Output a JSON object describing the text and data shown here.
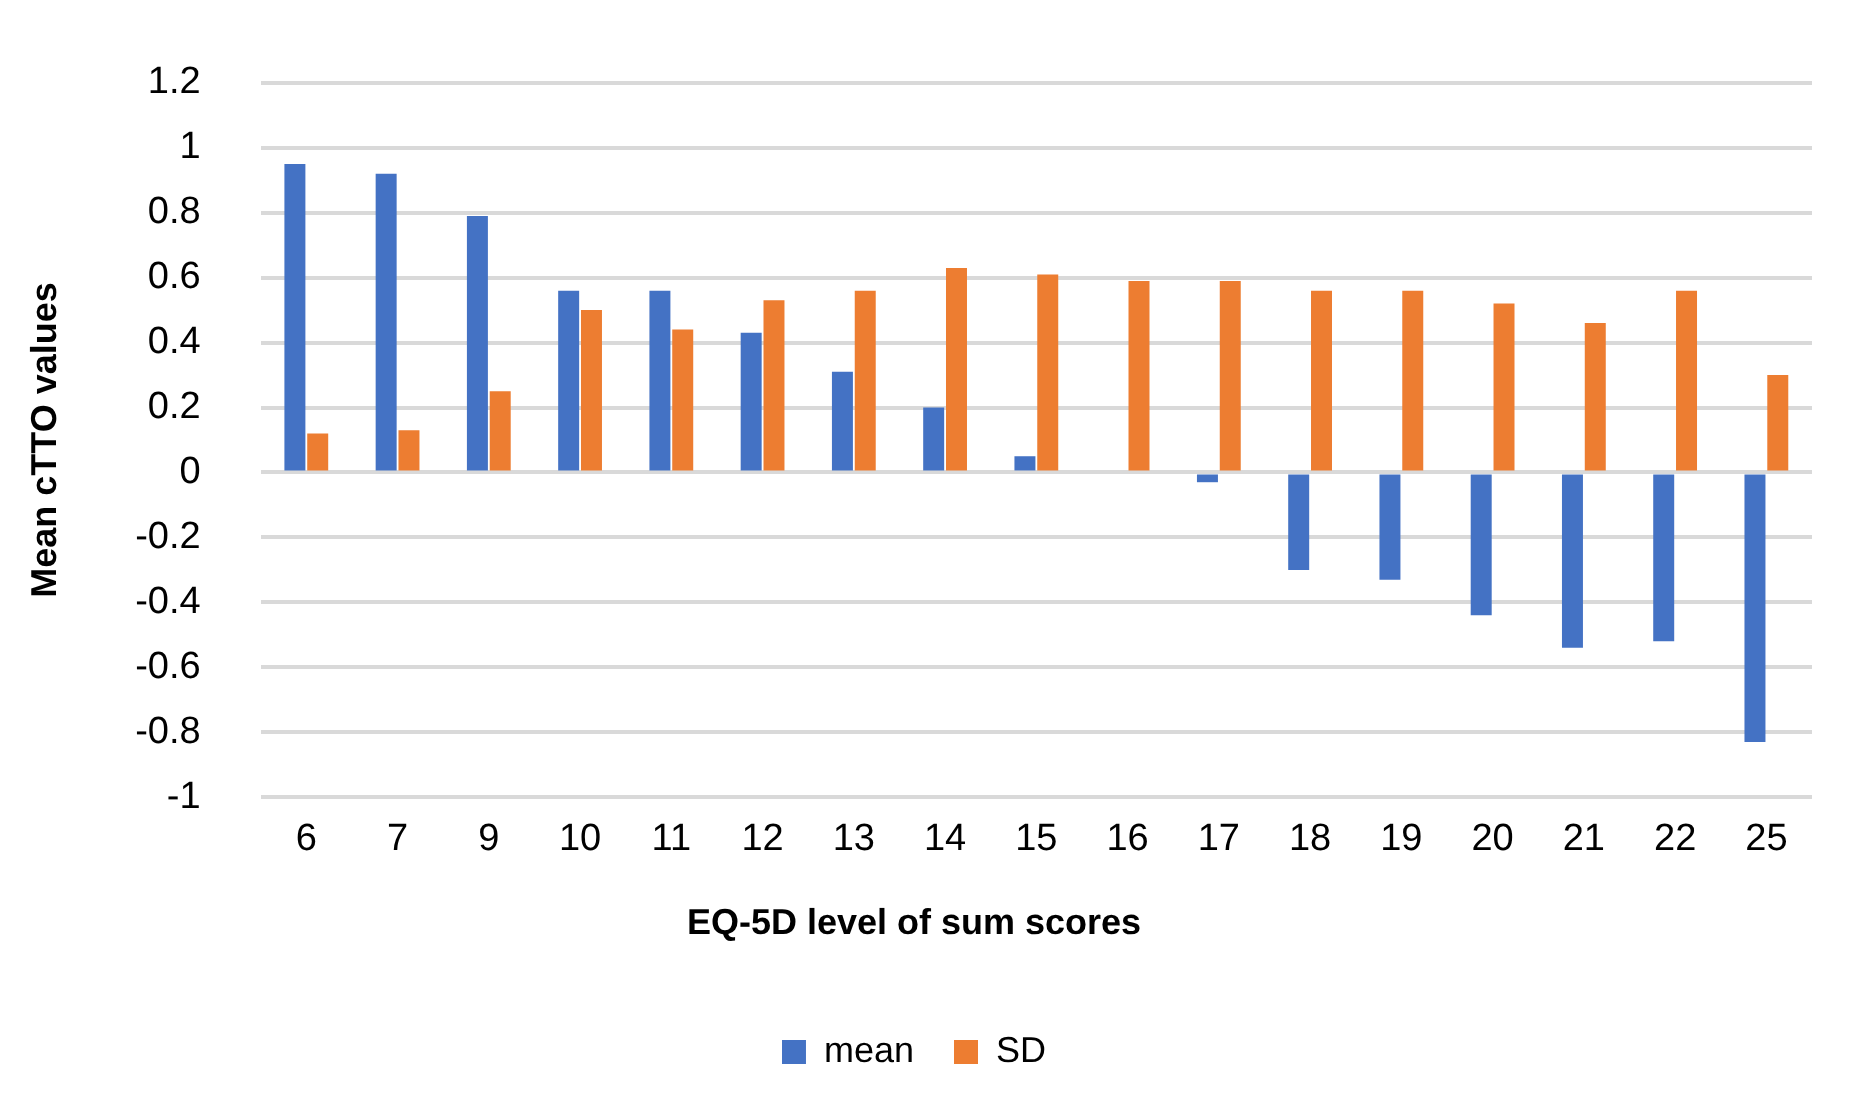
{
  "chart_data": {
    "type": "bar",
    "xlabel": "EQ-5D level of sum scores",
    "ylabel": "Mean cTTO values",
    "categories": [
      "6",
      "7",
      "9",
      "10",
      "11",
      "12",
      "13",
      "14",
      "15",
      "16",
      "17",
      "18",
      "19",
      "20",
      "21",
      "22",
      "25"
    ],
    "series": [
      {
        "name": "mean",
        "color": "#4472c4",
        "values": [
          0.95,
          0.92,
          0.79,
          0.56,
          0.56,
          0.43,
          0.31,
          0.2,
          0.05,
          null,
          -0.03,
          -0.3,
          -0.33,
          -0.44,
          -0.54,
          -0.52,
          -0.83
        ]
      },
      {
        "name": "SD",
        "color": "#ed7d31",
        "values": [
          0.12,
          0.13,
          0.25,
          0.5,
          0.44,
          0.53,
          0.56,
          0.63,
          0.61,
          0.59,
          0.59,
          0.56,
          0.56,
          0.52,
          0.46,
          0.56,
          0.3
        ]
      }
    ],
    "ylim": [
      -1,
      1.2
    ],
    "yticks": [
      -1,
      -0.8,
      -0.6,
      -0.4,
      -0.2,
      0,
      0.2,
      0.4,
      0.6,
      0.8,
      1,
      1.2
    ],
    "grid": "y",
    "legend": "bottom"
  }
}
